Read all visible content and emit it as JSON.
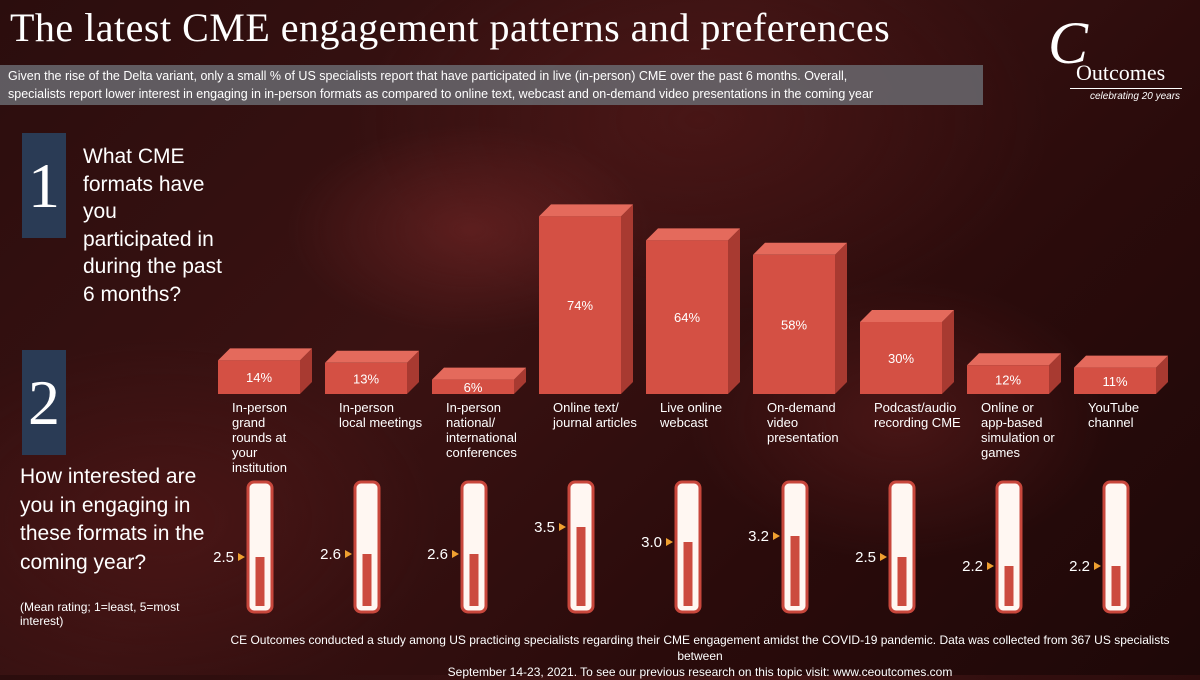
{
  "title": "The latest CME engagement patterns and preferences",
  "intro_lines": [
    "Given the rise of the Delta variant, only a small % of US specialists report that have participated in live (in-person) CME over the past 6 months.  Overall,",
    "specialists report lower interest in engaging in in-person formats as compared to online text, webcast and on-demand video presentations in the coming year"
  ],
  "logo": {
    "script": "C",
    "word": "Outcomes",
    "sub": "celebrating 20 years"
  },
  "q1": {
    "number": "1",
    "text": "What CME formats have you participated in during the past 6 months?"
  },
  "q2": {
    "number": "2",
    "text": "How interested are you in engaging in these formats in the coming year?",
    "note": "(Mean rating; 1=least, 5=most interest)"
  },
  "footer_lines": [
    "CE Outcomes conducted a study among US practicing specialists regarding their CME engagement amidst the COVID-19 pandemic.  Data was collected from 367 US specialists between",
    "September 14-23, 2021. To see our previous research on this topic visit: www.ceoutcomes.com"
  ],
  "colors": {
    "bar_front": "#d45044",
    "bar_top": "#e46a5c",
    "bar_side": "#a83a31",
    "thermo_fill": "#cc4b3f",
    "thermo_border": "#c8473c",
    "thermo_bg": "#fff7f2",
    "arrow": "#f0a030",
    "number_box": "#2a3b55"
  },
  "chart_data": [
    {
      "type": "bar",
      "categories": [
        "In-person grand rounds at your institution",
        "In-person local meetings",
        "In-person national/ international conferences",
        "Online text/ journal articles",
        "Live online webcast",
        "On-demand video presentation",
        "Podcast/audio recording CME",
        "Online or app-based simulation or games",
        "YouTube channel"
      ],
      "category_label_lines": [
        [
          "In-person",
          "grand",
          "rounds at",
          "your",
          "institution"
        ],
        [
          "In-person",
          "local meetings"
        ],
        [
          "In-person",
          "national/",
          "international",
          "conferences"
        ],
        [
          "Online text/",
          "journal articles"
        ],
        [
          "Live online",
          "webcast"
        ],
        [
          "On-demand",
          "video",
          "presentation"
        ],
        [
          "Podcast/audio",
          "recording CME"
        ],
        [
          "Online or",
          "app-based",
          "simulation or",
          "games"
        ],
        [
          "YouTube",
          "channel"
        ]
      ],
      "values": [
        14,
        13,
        6,
        74,
        64,
        58,
        30,
        12,
        11
      ],
      "value_labels": [
        "14%",
        "13%",
        "6%",
        "74%",
        "64%",
        "58%",
        "30%",
        "12%",
        "11%"
      ],
      "unit": "%",
      "ylim": [
        0,
        100
      ],
      "grid": false,
      "style": "3d"
    },
    {
      "type": "bar",
      "style": "thermometer",
      "values": [
        2.5,
        2.6,
        2.6,
        3.5,
        3.0,
        3.2,
        2.5,
        2.2,
        2.2
      ],
      "value_labels": [
        "2.5",
        "2.6",
        "2.6",
        "3.5",
        "3.0",
        "3.2",
        "2.5",
        "2.2",
        "2.2"
      ],
      "scale": [
        1,
        5
      ],
      "ylim": [
        1,
        5
      ]
    }
  ]
}
